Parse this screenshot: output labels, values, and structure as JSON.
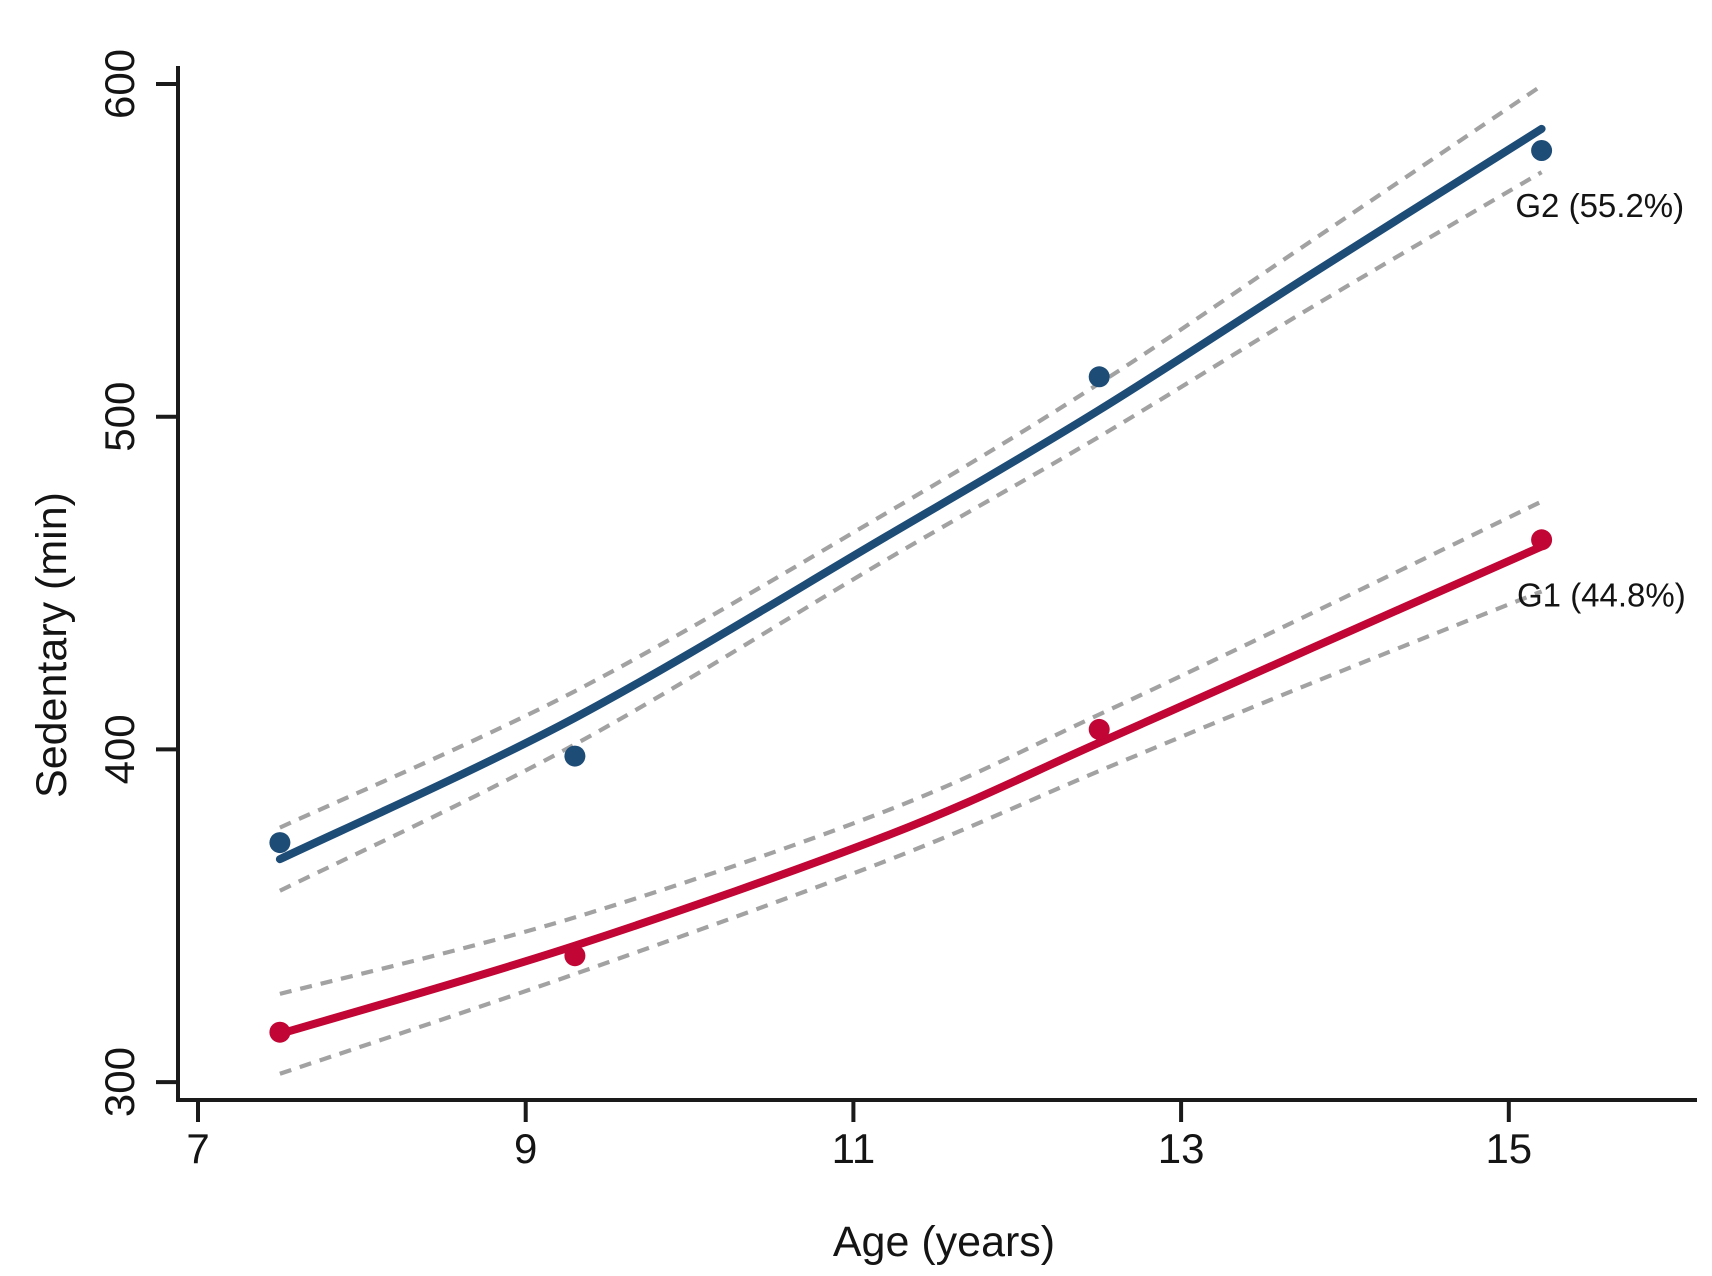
{
  "figure": {
    "background": "#ffffff"
  },
  "chart_data": {
    "type": "line",
    "title": "",
    "xlabel": "Age (years)",
    "ylabel": "Sedentary (min)",
    "x_ticks": [
      7,
      9,
      11,
      13,
      15
    ],
    "y_ticks": [
      300,
      400,
      500,
      600
    ],
    "xlim": [
      6.9,
      16.1
    ],
    "ylim": [
      295,
      607
    ],
    "grid": false,
    "legend_position": "inline-right-annotations",
    "axis_color": "#1a1a1a",
    "ci_color": "#a2a2a2",
    "ci_style": "dashed",
    "series": [
      {
        "name": "G2",
        "label": "G2 (55.2%)",
        "color": "#1d4c77",
        "marker": "circle",
        "x": [
          7.5,
          9.3,
          12.5,
          15.2
        ],
        "y": [
          372,
          398,
          512,
          580
        ],
        "fit_x": [
          7.5,
          9.3,
          11.2,
          12.5,
          13.8,
          15.2
        ],
        "fit_y": [
          367,
          409.5,
          464,
          502,
          543,
          586.5
        ],
        "ci_halfwidth": [
          9.5,
          8,
          7,
          8,
          10,
          13
        ],
        "annotation_anchor": {
          "x": 15.04,
          "y": 560
        }
      },
      {
        "name": "G1",
        "label": "G1 (44.8%)",
        "color": "#c10534",
        "marker": "circle",
        "x": [
          7.5,
          9.3,
          12.5,
          15.2
        ],
        "y": [
          315,
          338,
          406,
          463
        ],
        "fit_x": [
          7.5,
          9.3,
          11.2,
          12.5,
          13.8,
          15.2
        ],
        "fit_y": [
          314.5,
          341,
          374,
          402,
          430.5,
          461
        ],
        "ci_halfwidth": [
          12,
          8.5,
          7.5,
          8.5,
          10.5,
          13.5
        ],
        "annotation_anchor": {
          "x": 15.05,
          "y": 443
        }
      }
    ]
  }
}
